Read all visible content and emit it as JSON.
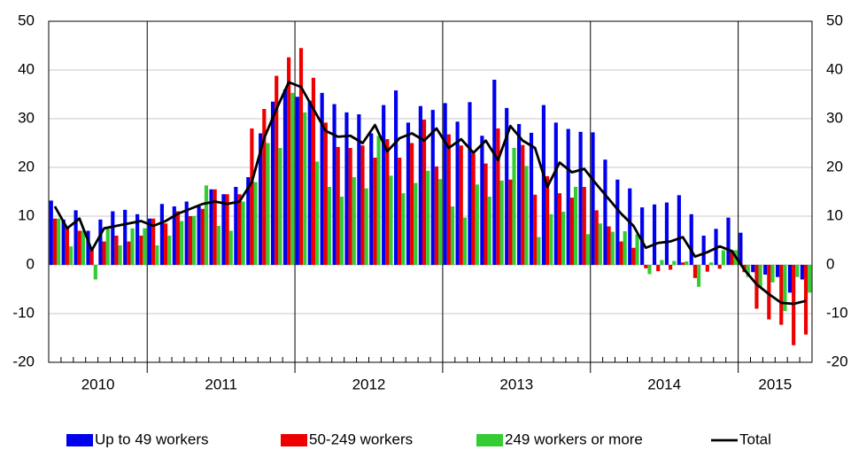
{
  "chart_data": {
    "type": "bar",
    "year_labels": [
      "2010",
      "2011",
      "2012",
      "2013",
      "2014",
      "2015"
    ],
    "categories": [
      null,
      null,
      null,
      null,
      null,
      null,
      null,
      null,
      null,
      null,
      null,
      null,
      null,
      null,
      null,
      null,
      null,
      null,
      null,
      null,
      null,
      null,
      null,
      null,
      null,
      null,
      null,
      null,
      null,
      null,
      null,
      null,
      null,
      null,
      null,
      null,
      null,
      null,
      null,
      null,
      null,
      null,
      null,
      null,
      null,
      null,
      null,
      null,
      null,
      null,
      null,
      null,
      null,
      null,
      null,
      null,
      null,
      null,
      null,
      null,
      null,
      null
    ],
    "series": [
      {
        "name": "Up to 49 workers",
        "color": "#0000ee",
        "values": [
          13.2,
          9.3,
          11.2,
          7,
          9.3,
          11,
          11.3,
          10.4,
          9.5,
          12.5,
          12,
          13,
          12,
          15.5,
          14.5,
          16,
          18,
          27,
          33.5,
          36,
          34.5,
          33.7,
          35.3,
          33,
          31.3,
          30.9,
          27,
          32.8,
          35.8,
          29.2,
          32.6,
          31.8,
          33.2,
          29.4,
          33.4,
          26.5,
          38,
          32.2,
          28.9,
          27.1,
          32.8,
          29.2,
          27.9,
          27.3,
          27.2,
          21.6,
          17.5,
          15.7,
          11.8,
          12.4,
          12.8,
          14.3,
          10.4,
          6,
          7.4,
          9.7,
          6.6,
          -1.5,
          -2,
          -2.5,
          -5.7,
          -3
        ]
      },
      {
        "name": "50-249 workers",
        "color": "#ee0000",
        "values": [
          9.5,
          7.5,
          7,
          3.2,
          4.8,
          6,
          4.8,
          6,
          9.5,
          8.5,
          11,
          10,
          11.5,
          15.5,
          14.5,
          14.5,
          28,
          32,
          38.8,
          42.6,
          44.5,
          38.4,
          29.2,
          24.2,
          24,
          24.5,
          22,
          25.8,
          22,
          25,
          29.8,
          20.2,
          26.8,
          24.5,
          22.8,
          20.8,
          28,
          17.5,
          24.6,
          14.4,
          18.2,
          14.7,
          13.8,
          16,
          11.2,
          7.9,
          4.8,
          3.5,
          -0.7,
          -1.3,
          -1,
          0.5,
          -2.7,
          -1.4,
          -0.8,
          3,
          -1.5,
          -9,
          -11.2,
          -12.3,
          -16.5,
          -14.3
        ]
      },
      {
        "name": "249 workers or more",
        "color": "#33cc33",
        "values": [
          9.5,
          3.8,
          7,
          -3,
          7.5,
          4,
          7.5,
          7.5,
          4,
          6,
          9,
          10,
          16.3,
          8,
          7,
          13,
          17,
          25,
          24,
          35.3,
          31.3,
          21.2,
          16,
          14,
          18,
          15.7,
          26.5,
          18.3,
          14.7,
          16.8,
          19.3,
          17.6,
          12,
          9.7,
          16.5,
          14,
          17.3,
          24,
          20.3,
          5.7,
          10.4,
          10.9,
          16,
          6.3,
          8.5,
          6.8,
          6.9,
          6.3,
          -1.9,
          1,
          0.8,
          0.7,
          -4.5,
          0.5,
          3,
          3,
          -2.5,
          -4.5,
          -3.6,
          -9.5,
          -2.5,
          -5.7
        ]
      },
      {
        "name": "Total",
        "color": "#000000",
        "line": true,
        "values": [
          12,
          7.5,
          9.5,
          3,
          7.5,
          8,
          8.5,
          9,
          8,
          9,
          10.5,
          11.5,
          12.5,
          13,
          12.5,
          13,
          17,
          26,
          32,
          37.5,
          36.5,
          32,
          27.5,
          26.3,
          26.5,
          25,
          28.7,
          23.3,
          26,
          27,
          25.5,
          28,
          24,
          25.8,
          23,
          25.5,
          21.5,
          28.5,
          25.5,
          24,
          16,
          21,
          19,
          19.7,
          16.5,
          13.5,
          10.5,
          8,
          3.5,
          4.5,
          4.8,
          5.7,
          1.7,
          2.6,
          3.8,
          2.8,
          -1,
          -4,
          -6,
          -7.8,
          -8,
          -7.4
        ]
      }
    ],
    "ylim": [
      -20,
      50
    ],
    "yticks": [
      -20,
      -10,
      0,
      10,
      20,
      30,
      40,
      50
    ],
    "grid": true
  }
}
